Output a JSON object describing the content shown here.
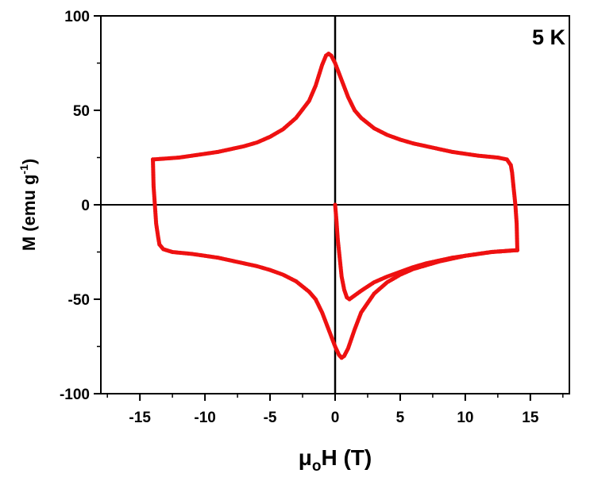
{
  "chart_data": {
    "type": "scatter",
    "title": "",
    "annotation": "5 K",
    "xlabel": {
      "main": "μ",
      "sub": "o",
      "rest": "H (T)"
    },
    "ylabel": {
      "main": "M (emu g",
      "sup": "-1",
      "rest": ")"
    },
    "xlim": [
      -18,
      18
    ],
    "ylim": [
      -100,
      100
    ],
    "x_ticks": [
      -15,
      -10,
      -5,
      0,
      5,
      10,
      15
    ],
    "x_tick_labels": [
      "-15",
      "-10",
      "-5",
      "0",
      "5",
      "10",
      "15"
    ],
    "y_ticks": [
      -100,
      -50,
      0,
      50,
      100
    ],
    "y_tick_labels": [
      "-100",
      "-50",
      "0",
      "50",
      "100"
    ],
    "zero_lines": true,
    "grid": false,
    "legend": "none",
    "marker_color": "#ee1111",
    "series": [
      {
        "segments": [
          [
            [
              0,
              0
            ],
            [
              0.1,
              -8
            ],
            [
              0.2,
              -18
            ],
            [
              0.35,
              -28
            ],
            [
              0.5,
              -38
            ],
            [
              0.7,
              -45
            ],
            [
              0.9,
              -49
            ],
            [
              1.1,
              -50
            ],
            [
              1.5,
              -48
            ],
            [
              2,
              -45.5
            ],
            [
              3,
              -41
            ],
            [
              4,
              -38
            ],
            [
              5,
              -35.5
            ],
            [
              6,
              -33
            ],
            [
              7,
              -31
            ],
            [
              8,
              -29.5
            ],
            [
              9,
              -28
            ],
            [
              10,
              -27
            ],
            [
              11,
              -26
            ],
            [
              12,
              -25
            ],
            [
              13,
              -24.5
            ],
            [
              14,
              -24
            ]
          ],
          [
            [
              14,
              -24
            ],
            [
              13.95,
              -10
            ],
            [
              13.85,
              0
            ],
            [
              13.7,
              10
            ],
            [
              13.6,
              17
            ],
            [
              13.5,
              21
            ],
            [
              13.2,
              24
            ],
            [
              12.5,
              25
            ],
            [
              11,
              26
            ],
            [
              10,
              27
            ],
            [
              9,
              28
            ],
            [
              8,
              29.5
            ],
            [
              7,
              31
            ],
            [
              6,
              32.5
            ],
            [
              5,
              34.5
            ],
            [
              4,
              37
            ],
            [
              3,
              40.5
            ],
            [
              2,
              46
            ],
            [
              1.5,
              50
            ],
            [
              1,
              57
            ],
            [
              0.5,
              66
            ],
            [
              0,
              75
            ],
            [
              -0.3,
              79
            ],
            [
              -0.5,
              80
            ],
            [
              -0.7,
              79
            ],
            [
              -1,
              74
            ],
            [
              -1.5,
              63
            ],
            [
              -2,
              55
            ],
            [
              -3,
              46
            ],
            [
              -4,
              40
            ],
            [
              -5,
              36
            ],
            [
              -6,
              33
            ],
            [
              -7,
              31
            ],
            [
              -8,
              29.5
            ],
            [
              -9,
              28
            ],
            [
              -10,
              27
            ],
            [
              -11,
              26
            ],
            [
              -12,
              25
            ],
            [
              -13,
              24.5
            ],
            [
              -14,
              24
            ]
          ],
          [
            [
              -14,
              24
            ],
            [
              -13.95,
              10
            ],
            [
              -13.85,
              0
            ],
            [
              -13.75,
              -10
            ],
            [
              -13.6,
              -17
            ],
            [
              -13.5,
              -21
            ],
            [
              -13.2,
              -23.5
            ],
            [
              -12.5,
              -25
            ],
            [
              -11,
              -26
            ],
            [
              -10,
              -27
            ],
            [
              -9,
              -28
            ],
            [
              -8,
              -29.5
            ],
            [
              -7,
              -31
            ],
            [
              -6,
              -32.5
            ],
            [
              -5,
              -34.5
            ],
            [
              -4,
              -37
            ],
            [
              -3,
              -40.5
            ],
            [
              -2,
              -46
            ],
            [
              -1.5,
              -50
            ],
            [
              -1,
              -57
            ],
            [
              -0.5,
              -66
            ],
            [
              0,
              -75
            ],
            [
              0.3,
              -79.5
            ],
            [
              0.5,
              -81
            ],
            [
              0.7,
              -80
            ],
            [
              1,
              -76
            ],
            [
              1.5,
              -66
            ],
            [
              2,
              -57
            ],
            [
              3,
              -47
            ],
            [
              4,
              -41
            ],
            [
              5,
              -37
            ],
            [
              6,
              -34
            ],
            [
              7,
              -32
            ],
            [
              8,
              -30
            ],
            [
              9,
              -28.5
            ],
            [
              10,
              -27
            ],
            [
              11,
              -26
            ],
            [
              12,
              -25
            ],
            [
              13,
              -24.5
            ],
            [
              14,
              -24
            ]
          ]
        ]
      }
    ]
  }
}
